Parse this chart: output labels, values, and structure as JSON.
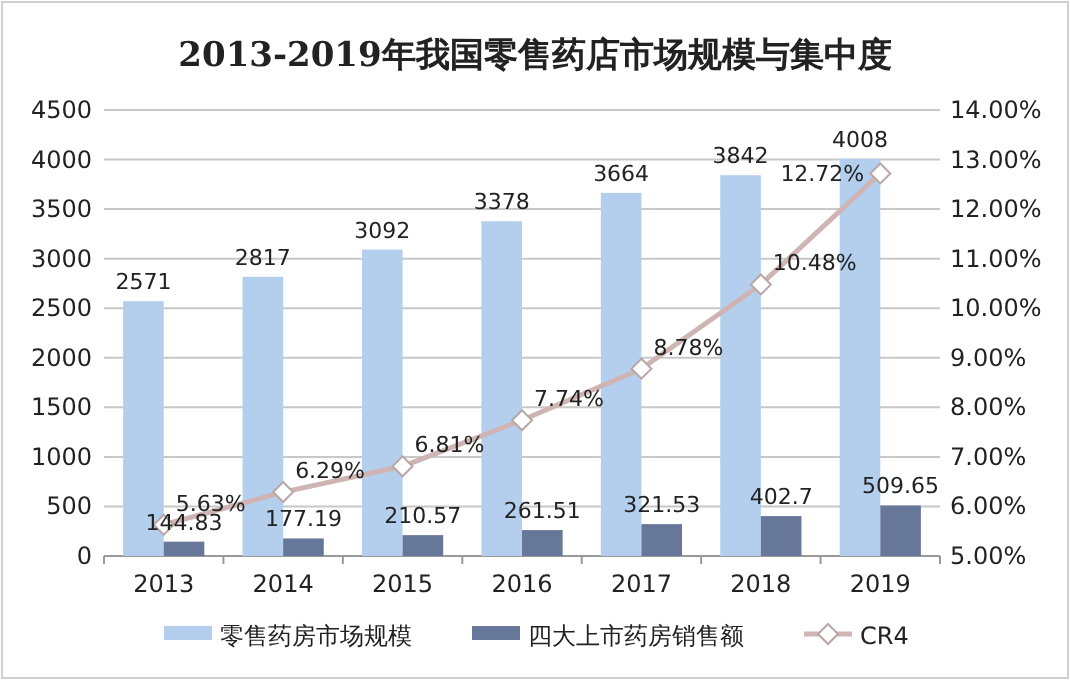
{
  "chart_data": {
    "type": "bar",
    "title": "2013-2019年我国零售药店市场规模与集中度",
    "categories": [
      "2013",
      "2014",
      "2015",
      "2016",
      "2017",
      "2018",
      "2019"
    ],
    "series": [
      {
        "name": "零售药房市场规模",
        "color": "#b4cfee",
        "values": [
          2571,
          2817,
          3092,
          3378,
          3664,
          3842,
          4008
        ],
        "value_labels": [
          "2571",
          "2817",
          "3092",
          "3378",
          "3664",
          "3842",
          "4008"
        ]
      },
      {
        "name": "四大上市药房销售额",
        "color": "#67779a",
        "values": [
          144.83,
          177.19,
          210.57,
          261.51,
          321.53,
          402.7,
          509.65
        ],
        "value_labels": [
          "144.83",
          "177.19",
          "210.57",
          "261.51",
          "321.53",
          "402.7",
          "509.65"
        ]
      },
      {
        "name": "CR4",
        "type": "line",
        "axis": "y2",
        "color": "#cfb4b4",
        "marker": "diamond",
        "values": [
          5.63,
          6.29,
          6.81,
          7.74,
          8.78,
          10.48,
          12.72
        ],
        "value_labels": [
          "5.63%",
          "6.29%",
          "6.81%",
          "7.74%",
          "8.78%",
          "10.48%",
          "12.72%"
        ]
      }
    ],
    "ylim": [
      0,
      4500
    ],
    "yticks": [
      0,
      500,
      1000,
      1500,
      2000,
      2500,
      3000,
      3500,
      4000,
      4500
    ],
    "y2lim": [
      5,
      14
    ],
    "y2ticks": [
      {
        "value": 5,
        "label": "5.00%"
      },
      {
        "value": 6,
        "label": "6.00%"
      },
      {
        "value": 7,
        "label": "7.00%"
      },
      {
        "value": 8,
        "label": "8.00%"
      },
      {
        "value": 9,
        "label": "9.00%"
      },
      {
        "value": 10,
        "label": "10.00%"
      },
      {
        "value": 11,
        "label": "11.00%"
      },
      {
        "value": 12,
        "label": "12.00%"
      },
      {
        "value": 13,
        "label": "13.00%"
      },
      {
        "value": 14,
        "label": "14.00%"
      }
    ],
    "grid": "y",
    "legend": "bottom"
  }
}
